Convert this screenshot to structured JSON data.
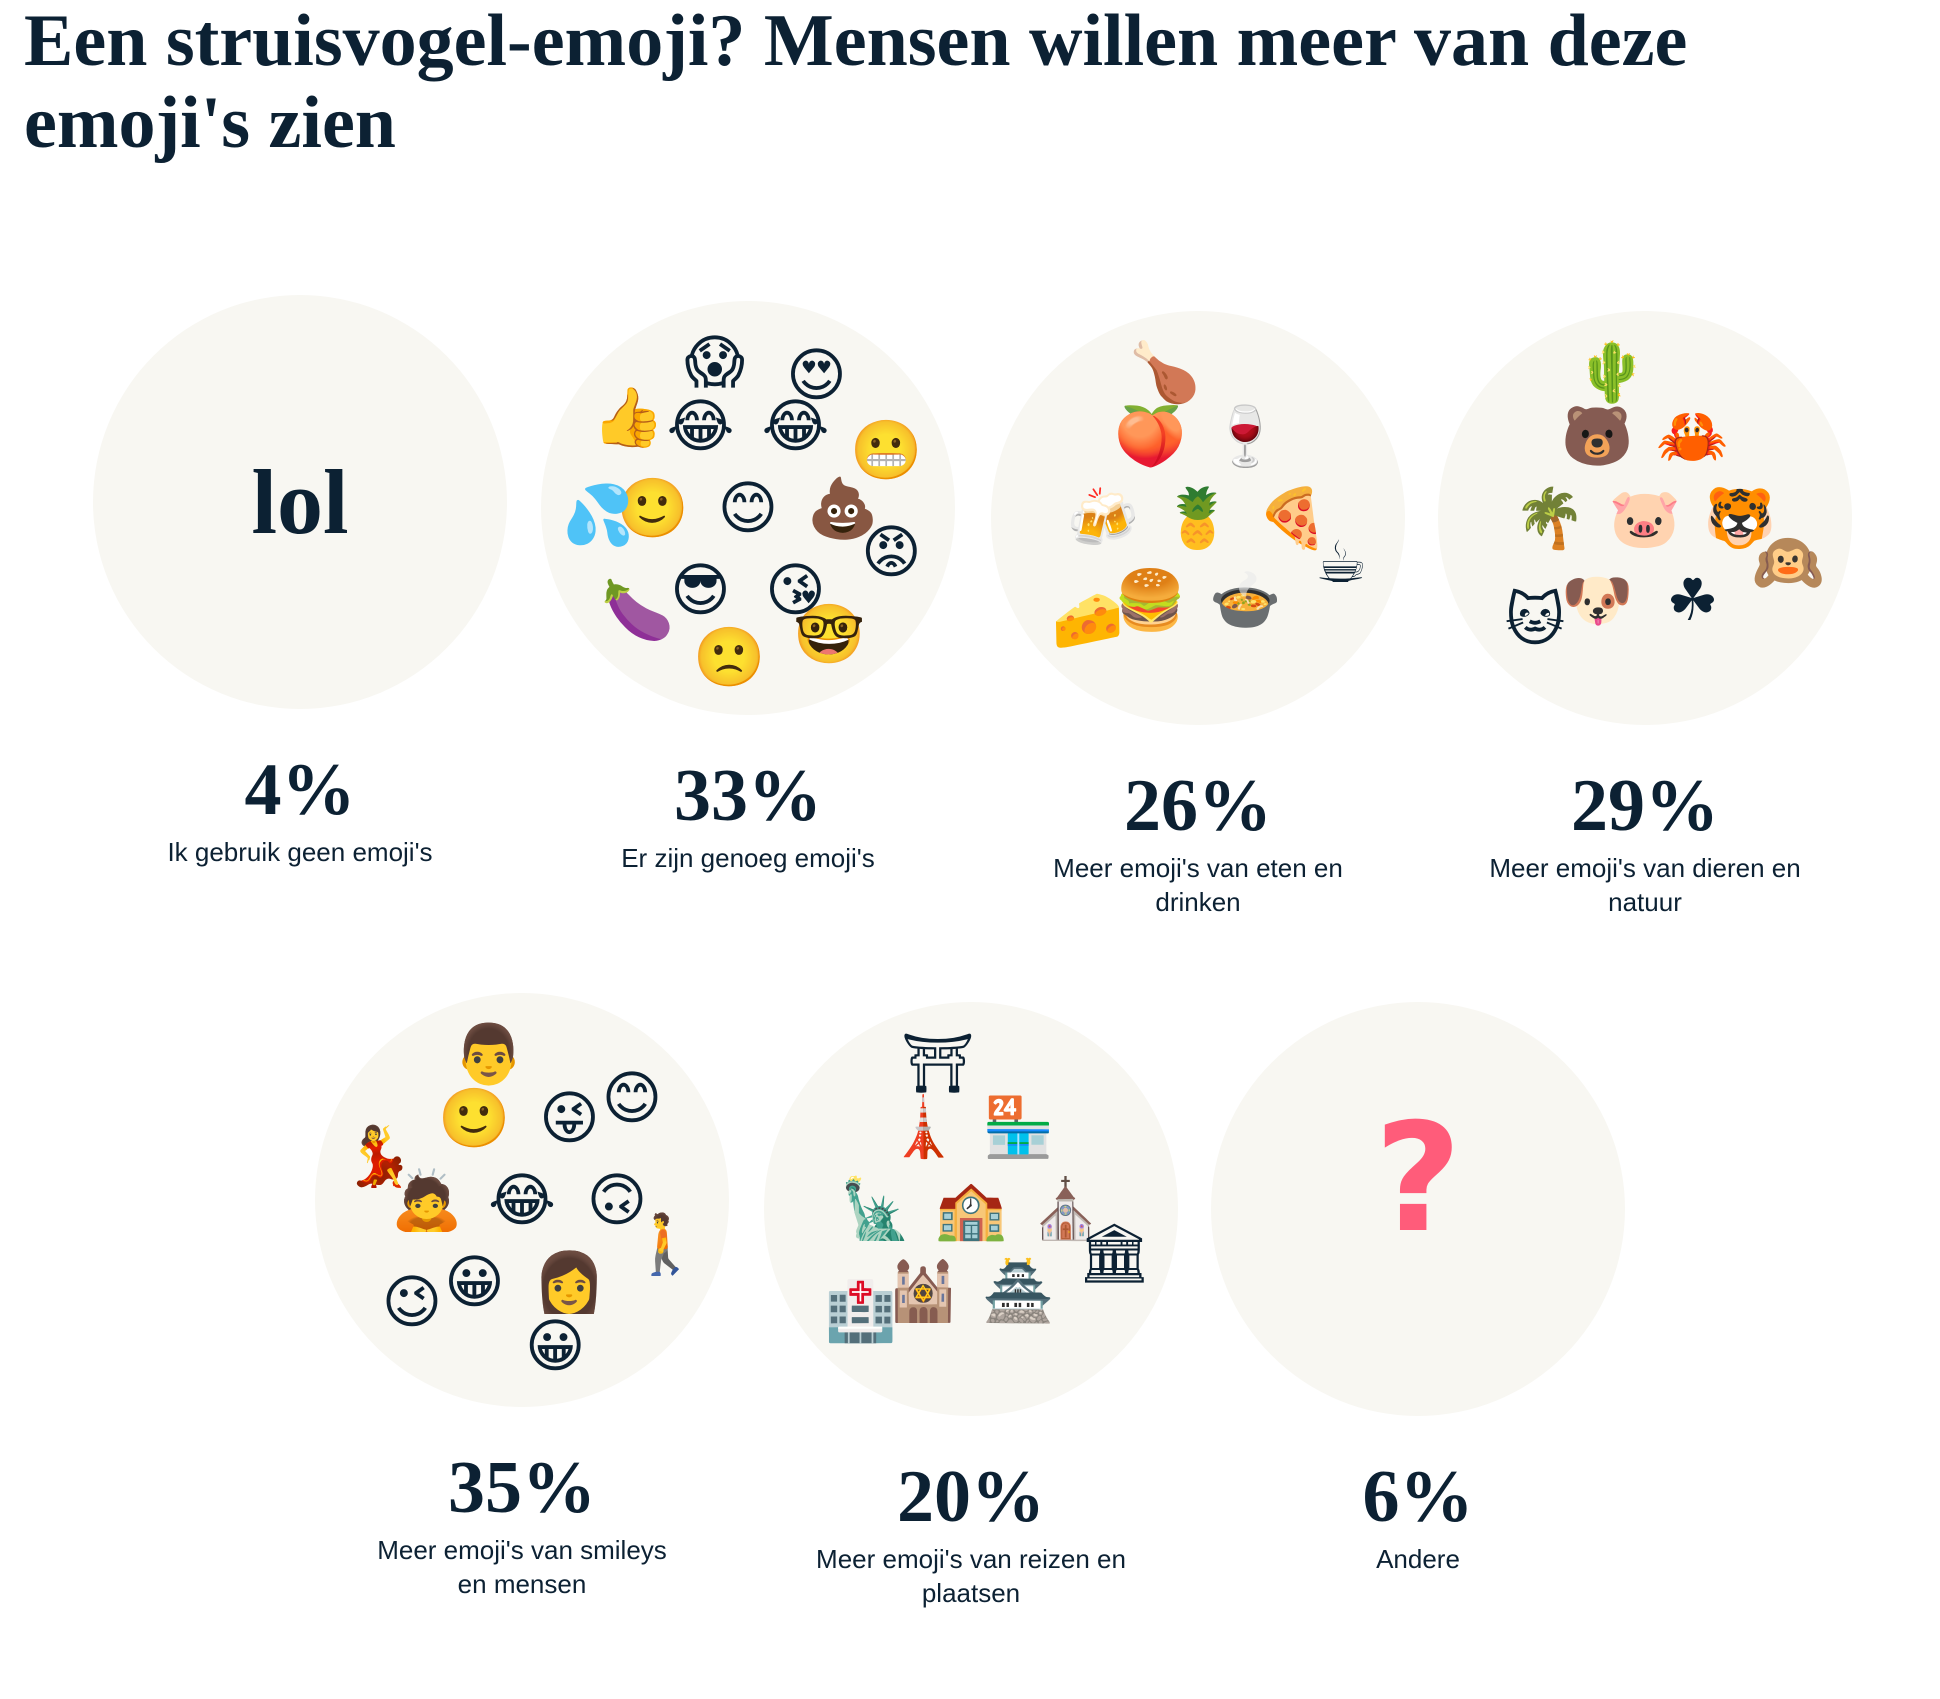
{
  "title": "Een struisvogel-emoji? Mensen willen meer van deze emoji's zien",
  "colors": {
    "text": "#0c2133",
    "circle": "#f8f7f2",
    "question": "#ff5c7a"
  },
  "items": [
    {
      "percent": 4,
      "percent_label": "4%",
      "label": "Ik gebruik geen emoji's",
      "center_text": "lol",
      "icons": []
    },
    {
      "percent": 33,
      "percent_label": "33%",
      "label": "Er zijn genoeg emoji's",
      "icons": [
        "smiling-blush",
        "poop",
        "kissing-heart",
        "sunglasses",
        "slightly-smiling",
        "tears-of-joy",
        "tears-of-joy",
        "angry",
        "nerd",
        "frowning",
        "eggplant",
        "sweat-drops",
        "thumbs-up",
        "screaming",
        "heart-eyes",
        "grimacing"
      ]
    },
    {
      "percent": 26,
      "percent_label": "26%",
      "label": "Meer emoji's van eten en drinken",
      "icons": [
        "pineapple",
        "pizza",
        "stew",
        "hamburger",
        "beer-mugs",
        "peach",
        "wine-glass",
        "coffee",
        "cheese",
        "poultry-leg"
      ]
    },
    {
      "percent": 29,
      "percent_label": "29%",
      "label": "Meer emoji's van dieren en natuur",
      "icons": [
        "pig",
        "tiger",
        "shamrock",
        "dog",
        "palm-tree",
        "bear",
        "crab",
        "monkey",
        "cat",
        "cactus"
      ]
    },
    {
      "percent": 35,
      "percent_label": "35%",
      "label": "Meer emoji's van smileys en mensen",
      "icons": [
        "tears-of-joy",
        "upside-down",
        "woman",
        "grinning",
        "bowing-person",
        "slightly-smiling",
        "winking-tongue",
        "walking-person",
        "grinning",
        "wink",
        "dancer",
        "man",
        "smiling-blush"
      ]
    },
    {
      "percent": 20,
      "percent_label": "20%",
      "label": "Meer emoji's van reizen en plaatsen",
      "icons": [
        "school",
        "church",
        "castle",
        "synagogue",
        "statue-of-liberty",
        "tokyo-tower",
        "shop",
        "classical-building",
        "hospital",
        "torii"
      ]
    },
    {
      "percent": 6,
      "percent_label": "6%",
      "label": "Andere",
      "center_icon": "question-mark",
      "center_text": "?",
      "icons": []
    }
  ]
}
